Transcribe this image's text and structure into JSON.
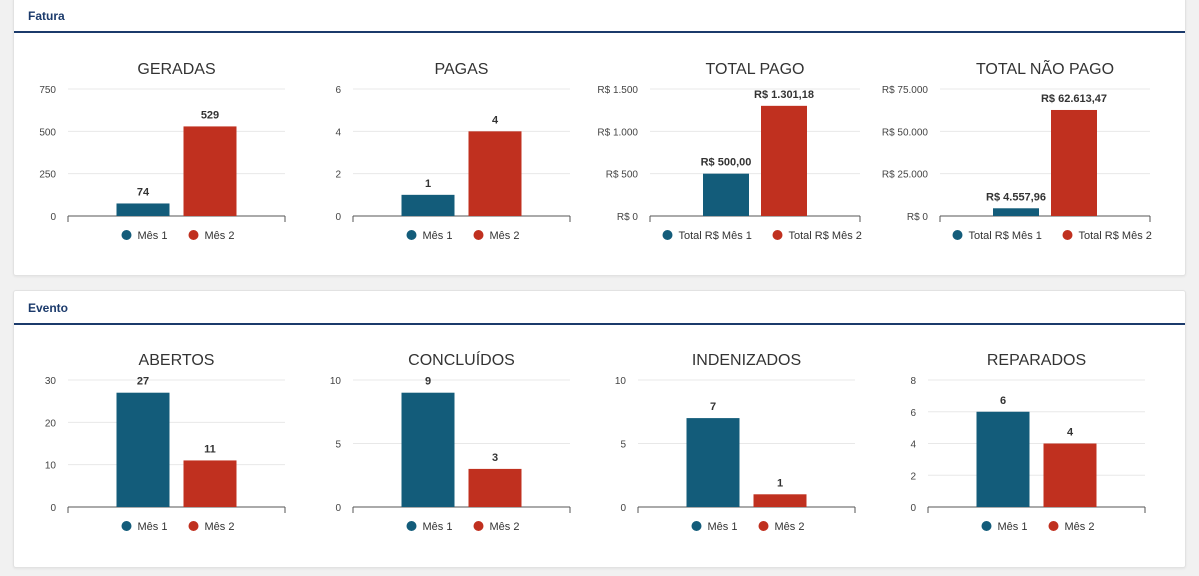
{
  "colors": {
    "mes1": "#135c7a",
    "mes2": "#c0301f",
    "header": "#1b3a6b"
  },
  "sections": [
    {
      "title": "Fatura"
    },
    {
      "title": "Evento"
    }
  ],
  "chart_data": [
    {
      "type": "bar",
      "title": "GERADAS",
      "categories": [
        "Mês 1",
        "Mês 2"
      ],
      "values": [
        74,
        529
      ],
      "data_labels": [
        "74",
        "529"
      ],
      "ylim": [
        0,
        750
      ],
      "ticks": [
        0,
        250,
        500,
        750
      ],
      "tick_labels": [
        "0",
        "250",
        "500",
        "750"
      ],
      "legend": [
        "Mês 1",
        "Mês 2"
      ]
    },
    {
      "type": "bar",
      "title": "PAGAS",
      "categories": [
        "Mês 1",
        "Mês 2"
      ],
      "values": [
        1,
        4
      ],
      "data_labels": [
        "1",
        "4"
      ],
      "ylim": [
        0,
        6
      ],
      "ticks": [
        0,
        2,
        4,
        6
      ],
      "tick_labels": [
        "0",
        "2",
        "4",
        "6"
      ],
      "legend": [
        "Mês 1",
        "Mês 2"
      ]
    },
    {
      "type": "bar",
      "title": "TOTAL PAGO",
      "categories": [
        "Total R$ Mês 1",
        "Total R$ Mês 2"
      ],
      "values": [
        500,
        1301.18
      ],
      "data_labels": [
        "R$ 500,00",
        "R$ 1.301,18"
      ],
      "ylim": [
        0,
        1500
      ],
      "ticks": [
        0,
        500,
        1000,
        1500
      ],
      "tick_labels": [
        "R$ 0",
        "R$ 500",
        "R$ 1.000",
        "R$ 1.500"
      ],
      "legend": [
        "Total R$ Mês 1",
        "Total R$ Mês 2"
      ]
    },
    {
      "type": "bar",
      "title": "TOTAL NÃO PAGO",
      "categories": [
        "Total R$ Mês 1",
        "Total R$ Mês 2"
      ],
      "values": [
        4557.96,
        62613.47
      ],
      "data_labels": [
        "R$ 4.557,96",
        "R$ 62.613,47"
      ],
      "ylim": [
        0,
        75000
      ],
      "ticks": [
        0,
        25000,
        50000,
        75000
      ],
      "tick_labels": [
        "R$ 0",
        "R$ 25.000",
        "R$ 50.000",
        "R$ 75.000"
      ],
      "legend": [
        "Total R$ Mês 1",
        "Total R$ Mês 2"
      ]
    },
    {
      "type": "bar",
      "title": "ABERTOS",
      "categories": [
        "Mês 1",
        "Mês 2"
      ],
      "values": [
        27,
        11
      ],
      "data_labels": [
        "27",
        "11"
      ],
      "ylim": [
        0,
        30
      ],
      "ticks": [
        0,
        10,
        20,
        30
      ],
      "tick_labels": [
        "0",
        "10",
        "20",
        "30"
      ],
      "legend": [
        "Mês 1",
        "Mês 2"
      ]
    },
    {
      "type": "bar",
      "title": "CONCLUÍDOS",
      "categories": [
        "Mês 1",
        "Mês 2"
      ],
      "values": [
        9,
        3
      ],
      "data_labels": [
        "9",
        "3"
      ],
      "ylim": [
        0,
        10
      ],
      "ticks": [
        0,
        5,
        10
      ],
      "tick_labels": [
        "0",
        "5",
        "10"
      ],
      "legend": [
        "Mês 1",
        "Mês 2"
      ]
    },
    {
      "type": "bar",
      "title": "INDENIZADOS",
      "categories": [
        "Mês 1",
        "Mês 2"
      ],
      "values": [
        7,
        1
      ],
      "data_labels": [
        "7",
        "1"
      ],
      "ylim": [
        0,
        10
      ],
      "ticks": [
        0,
        5,
        10
      ],
      "tick_labels": [
        "0",
        "5",
        "10"
      ],
      "legend": [
        "Mês 1",
        "Mês 2"
      ]
    },
    {
      "type": "bar",
      "title": "REPARADOS",
      "categories": [
        "Mês 1",
        "Mês 2"
      ],
      "values": [
        6,
        4
      ],
      "data_labels": [
        "6",
        "4"
      ],
      "ylim": [
        0,
        8
      ],
      "ticks": [
        0,
        2,
        4,
        6,
        8
      ],
      "tick_labels": [
        "0",
        "2",
        "4",
        "6",
        "8"
      ],
      "legend": [
        "Mês 1",
        "Mês 2"
      ]
    }
  ]
}
